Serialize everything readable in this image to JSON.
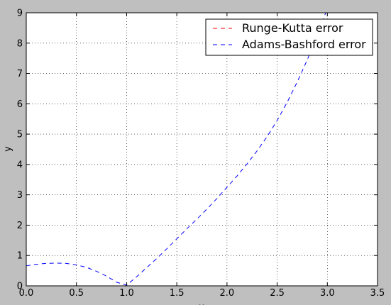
{
  "chart_data": {
    "type": "line",
    "title": "",
    "xlabel": "x",
    "ylabel": "y",
    "xlim": [
      0,
      3.5
    ],
    "ylim": [
      0,
      9
    ],
    "xticks": [
      "0.0",
      "0.5",
      "1.0",
      "1.5",
      "2.0",
      "2.5",
      "3.0",
      "3.5"
    ],
    "yticks": [
      "0",
      "1",
      "2",
      "3",
      "4",
      "5",
      "6",
      "7",
      "8",
      "9"
    ],
    "grid": true,
    "legend_position": "top-right",
    "series": [
      {
        "name": "Runge-Kutta error",
        "color": "#ff0000",
        "style": "dashed",
        "x": [
          0.0,
          0.5,
          1.0,
          1.5,
          2.0,
          2.5,
          3.0
        ],
        "y": [
          0.0,
          0.0,
          0.0,
          0.0,
          0.0,
          0.0,
          0.0
        ]
      },
      {
        "name": "Adams-Bashford error",
        "color": "#0000ff",
        "style": "dashed",
        "x": [
          0.0,
          0.1,
          0.2,
          0.3,
          0.4,
          0.5,
          0.6,
          0.7,
          0.8,
          0.9,
          1.0,
          1.1,
          1.2,
          1.3,
          1.4,
          1.5,
          1.6,
          1.7,
          1.8,
          1.9,
          2.0,
          2.1,
          2.2,
          2.3,
          2.4,
          2.5,
          2.6,
          2.7,
          2.8,
          2.9,
          3.0
        ],
        "y": [
          0.66,
          0.71,
          0.74,
          0.75,
          0.74,
          0.69,
          0.61,
          0.48,
          0.32,
          0.12,
          0.02,
          0.3,
          0.6,
          0.9,
          1.22,
          1.55,
          1.88,
          2.2,
          2.53,
          2.88,
          3.25,
          3.62,
          4.02,
          4.45,
          4.92,
          5.45,
          6.05,
          6.72,
          7.45,
          8.25,
          9.15
        ]
      }
    ]
  }
}
